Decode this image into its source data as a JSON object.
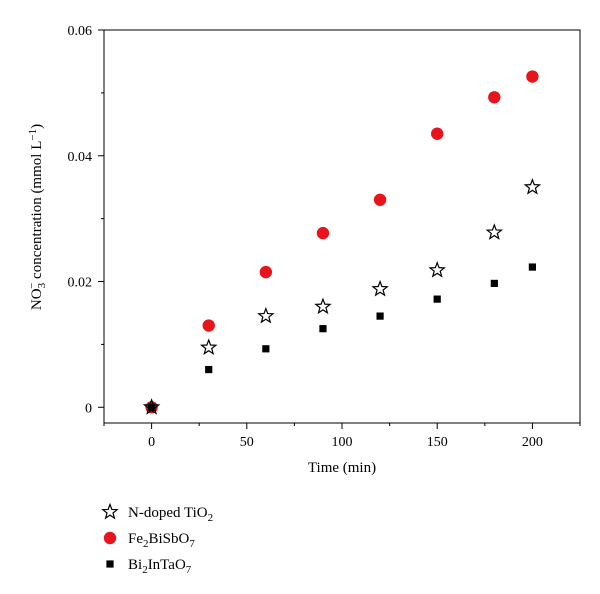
{
  "chart_data": {
    "type": "scatter",
    "xlabel": "Time (min)",
    "ylabel": "NO3− concentration (mmol L−1)",
    "xlim": [
      -25,
      225
    ],
    "ylim": [
      -0.0025,
      0.06
    ],
    "xticks": [
      0,
      50,
      100,
      150,
      200
    ],
    "xtick_labels": [
      "0",
      "50",
      "100",
      "150",
      "200"
    ],
    "yticks": [
      0,
      0.02,
      0.04,
      0.06
    ],
    "ytick_labels": [
      "0",
      "0.02",
      "0.04",
      "0.06"
    ],
    "grid": false,
    "legend_position": "bottom-left, below plot",
    "series": [
      {
        "name": "N-doped TiO2",
        "marker": "star",
        "color": "#000000",
        "x": [
          0,
          30,
          60,
          90,
          120,
          150,
          180,
          200
        ],
        "y": [
          0,
          0.0095,
          0.0145,
          0.016,
          0.0188,
          0.0218,
          0.0278,
          0.035
        ]
      },
      {
        "name": "Fe2BiSbO7",
        "marker": "circle",
        "color": "#e8141b",
        "x": [
          0,
          30,
          60,
          90,
          120,
          150,
          180,
          200
        ],
        "y": [
          0,
          0.013,
          0.0215,
          0.0277,
          0.033,
          0.0435,
          0.0493,
          0.0526
        ]
      },
      {
        "name": "Bi2InTaO7",
        "marker": "square",
        "color": "#000000",
        "x": [
          0,
          30,
          60,
          90,
          120,
          150,
          180,
          200
        ],
        "y": [
          0,
          0.006,
          0.0093,
          0.0125,
          0.0145,
          0.0172,
          0.0197,
          0.0223
        ]
      }
    ]
  }
}
